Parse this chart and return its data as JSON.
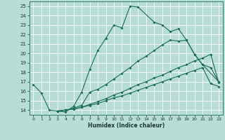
{
  "xlabel": "Humidex (Indice chaleur)",
  "bg_color": "#b8ddd5",
  "grid_color": "#ffffff",
  "line_color": "#1a6b5a",
  "xlim": [
    -0.5,
    23.5
  ],
  "ylim": [
    13.5,
    25.5
  ],
  "yticks": [
    14,
    15,
    16,
    17,
    18,
    19,
    20,
    21,
    22,
    23,
    24,
    25
  ],
  "xticks": [
    0,
    1,
    2,
    3,
    4,
    5,
    6,
    7,
    8,
    9,
    10,
    11,
    12,
    13,
    14,
    15,
    16,
    17,
    18,
    19,
    20,
    21,
    22,
    23
  ],
  "line1_x": [
    0,
    1,
    2,
    3,
    4,
    5,
    6,
    7,
    8,
    9,
    10,
    11,
    12,
    13,
    15,
    16,
    17,
    18,
    19,
    20,
    21,
    23
  ],
  "line1_y": [
    16.7,
    15.8,
    14.0,
    13.9,
    13.8,
    14.4,
    15.9,
    18.3,
    20.3,
    21.6,
    23.0,
    22.7,
    25.0,
    24.9,
    23.3,
    23.0,
    22.3,
    22.6,
    21.4,
    19.9,
    18.8,
    17.0
  ],
  "line2_x": [
    3,
    4,
    5,
    6,
    7,
    8,
    9,
    10,
    11,
    12,
    13,
    14,
    15,
    16,
    17,
    18,
    19,
    20,
    21,
    22,
    23
  ],
  "line2_y": [
    13.9,
    14.0,
    14.2,
    14.5,
    15.9,
    16.2,
    16.7,
    17.3,
    17.9,
    18.5,
    19.2,
    19.7,
    20.3,
    20.9,
    21.4,
    21.3,
    21.4,
    19.9,
    18.8,
    18.5,
    17.0
  ],
  "line3_x": [
    3,
    4,
    5,
    6,
    7,
    8,
    9,
    10,
    11,
    12,
    13,
    14,
    15,
    16,
    17,
    18,
    19,
    20,
    21,
    22,
    23
  ],
  "line3_y": [
    13.9,
    14.0,
    14.1,
    14.3,
    14.6,
    14.9,
    15.2,
    15.6,
    15.9,
    16.3,
    16.7,
    17.0,
    17.4,
    17.7,
    18.1,
    18.5,
    18.8,
    19.2,
    19.5,
    19.9,
    16.9
  ],
  "line4_x": [
    3,
    4,
    5,
    6,
    7,
    8,
    9,
    10,
    11,
    12,
    13,
    14,
    15,
    16,
    17,
    18,
    19,
    20,
    21,
    22,
    23
  ],
  "line4_y": [
    13.9,
    14.0,
    14.1,
    14.3,
    14.5,
    14.7,
    15.0,
    15.3,
    15.5,
    15.8,
    16.1,
    16.4,
    16.7,
    17.0,
    17.3,
    17.6,
    17.9,
    18.2,
    18.5,
    16.8,
    16.5
  ]
}
